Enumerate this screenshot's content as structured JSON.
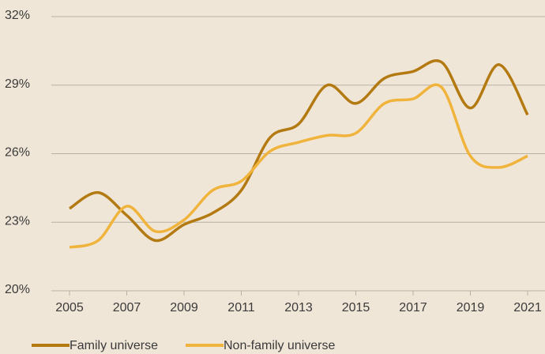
{
  "chart_data": {
    "type": "line",
    "x": [
      2005,
      2006,
      2007,
      2008,
      2009,
      2010,
      2011,
      2012,
      2013,
      2014,
      2015,
      2016,
      2017,
      2018,
      2019,
      2020,
      2021
    ],
    "series": [
      {
        "name": "Family universe",
        "color": "#b47a12",
        "values": [
          23.6,
          24.3,
          23.3,
          22.2,
          22.9,
          23.4,
          24.4,
          26.7,
          27.3,
          29.0,
          28.2,
          29.3,
          29.6,
          30.0,
          28.0,
          29.9,
          27.7
        ]
      },
      {
        "name": "Non-family universe",
        "color": "#f0b43c",
        "values": [
          21.9,
          22.2,
          23.7,
          22.6,
          23.1,
          24.4,
          24.8,
          26.1,
          26.5,
          26.8,
          26.9,
          28.2,
          28.4,
          28.9,
          25.9,
          25.4,
          25.9
        ]
      }
    ],
    "xlim": [
      2005,
      2021
    ],
    "xticks": [
      2005,
      2007,
      2009,
      2011,
      2013,
      2015,
      2017,
      2019,
      2021
    ],
    "ylim": [
      20,
      32
    ],
    "yticks": [
      {
        "value": 20,
        "label": "20%"
      },
      {
        "value": 23,
        "label": "23%"
      },
      {
        "value": 26,
        "label": "26%"
      },
      {
        "value": 29,
        "label": "29%"
      },
      {
        "value": 32,
        "label": "32%"
      }
    ],
    "grid": true
  }
}
